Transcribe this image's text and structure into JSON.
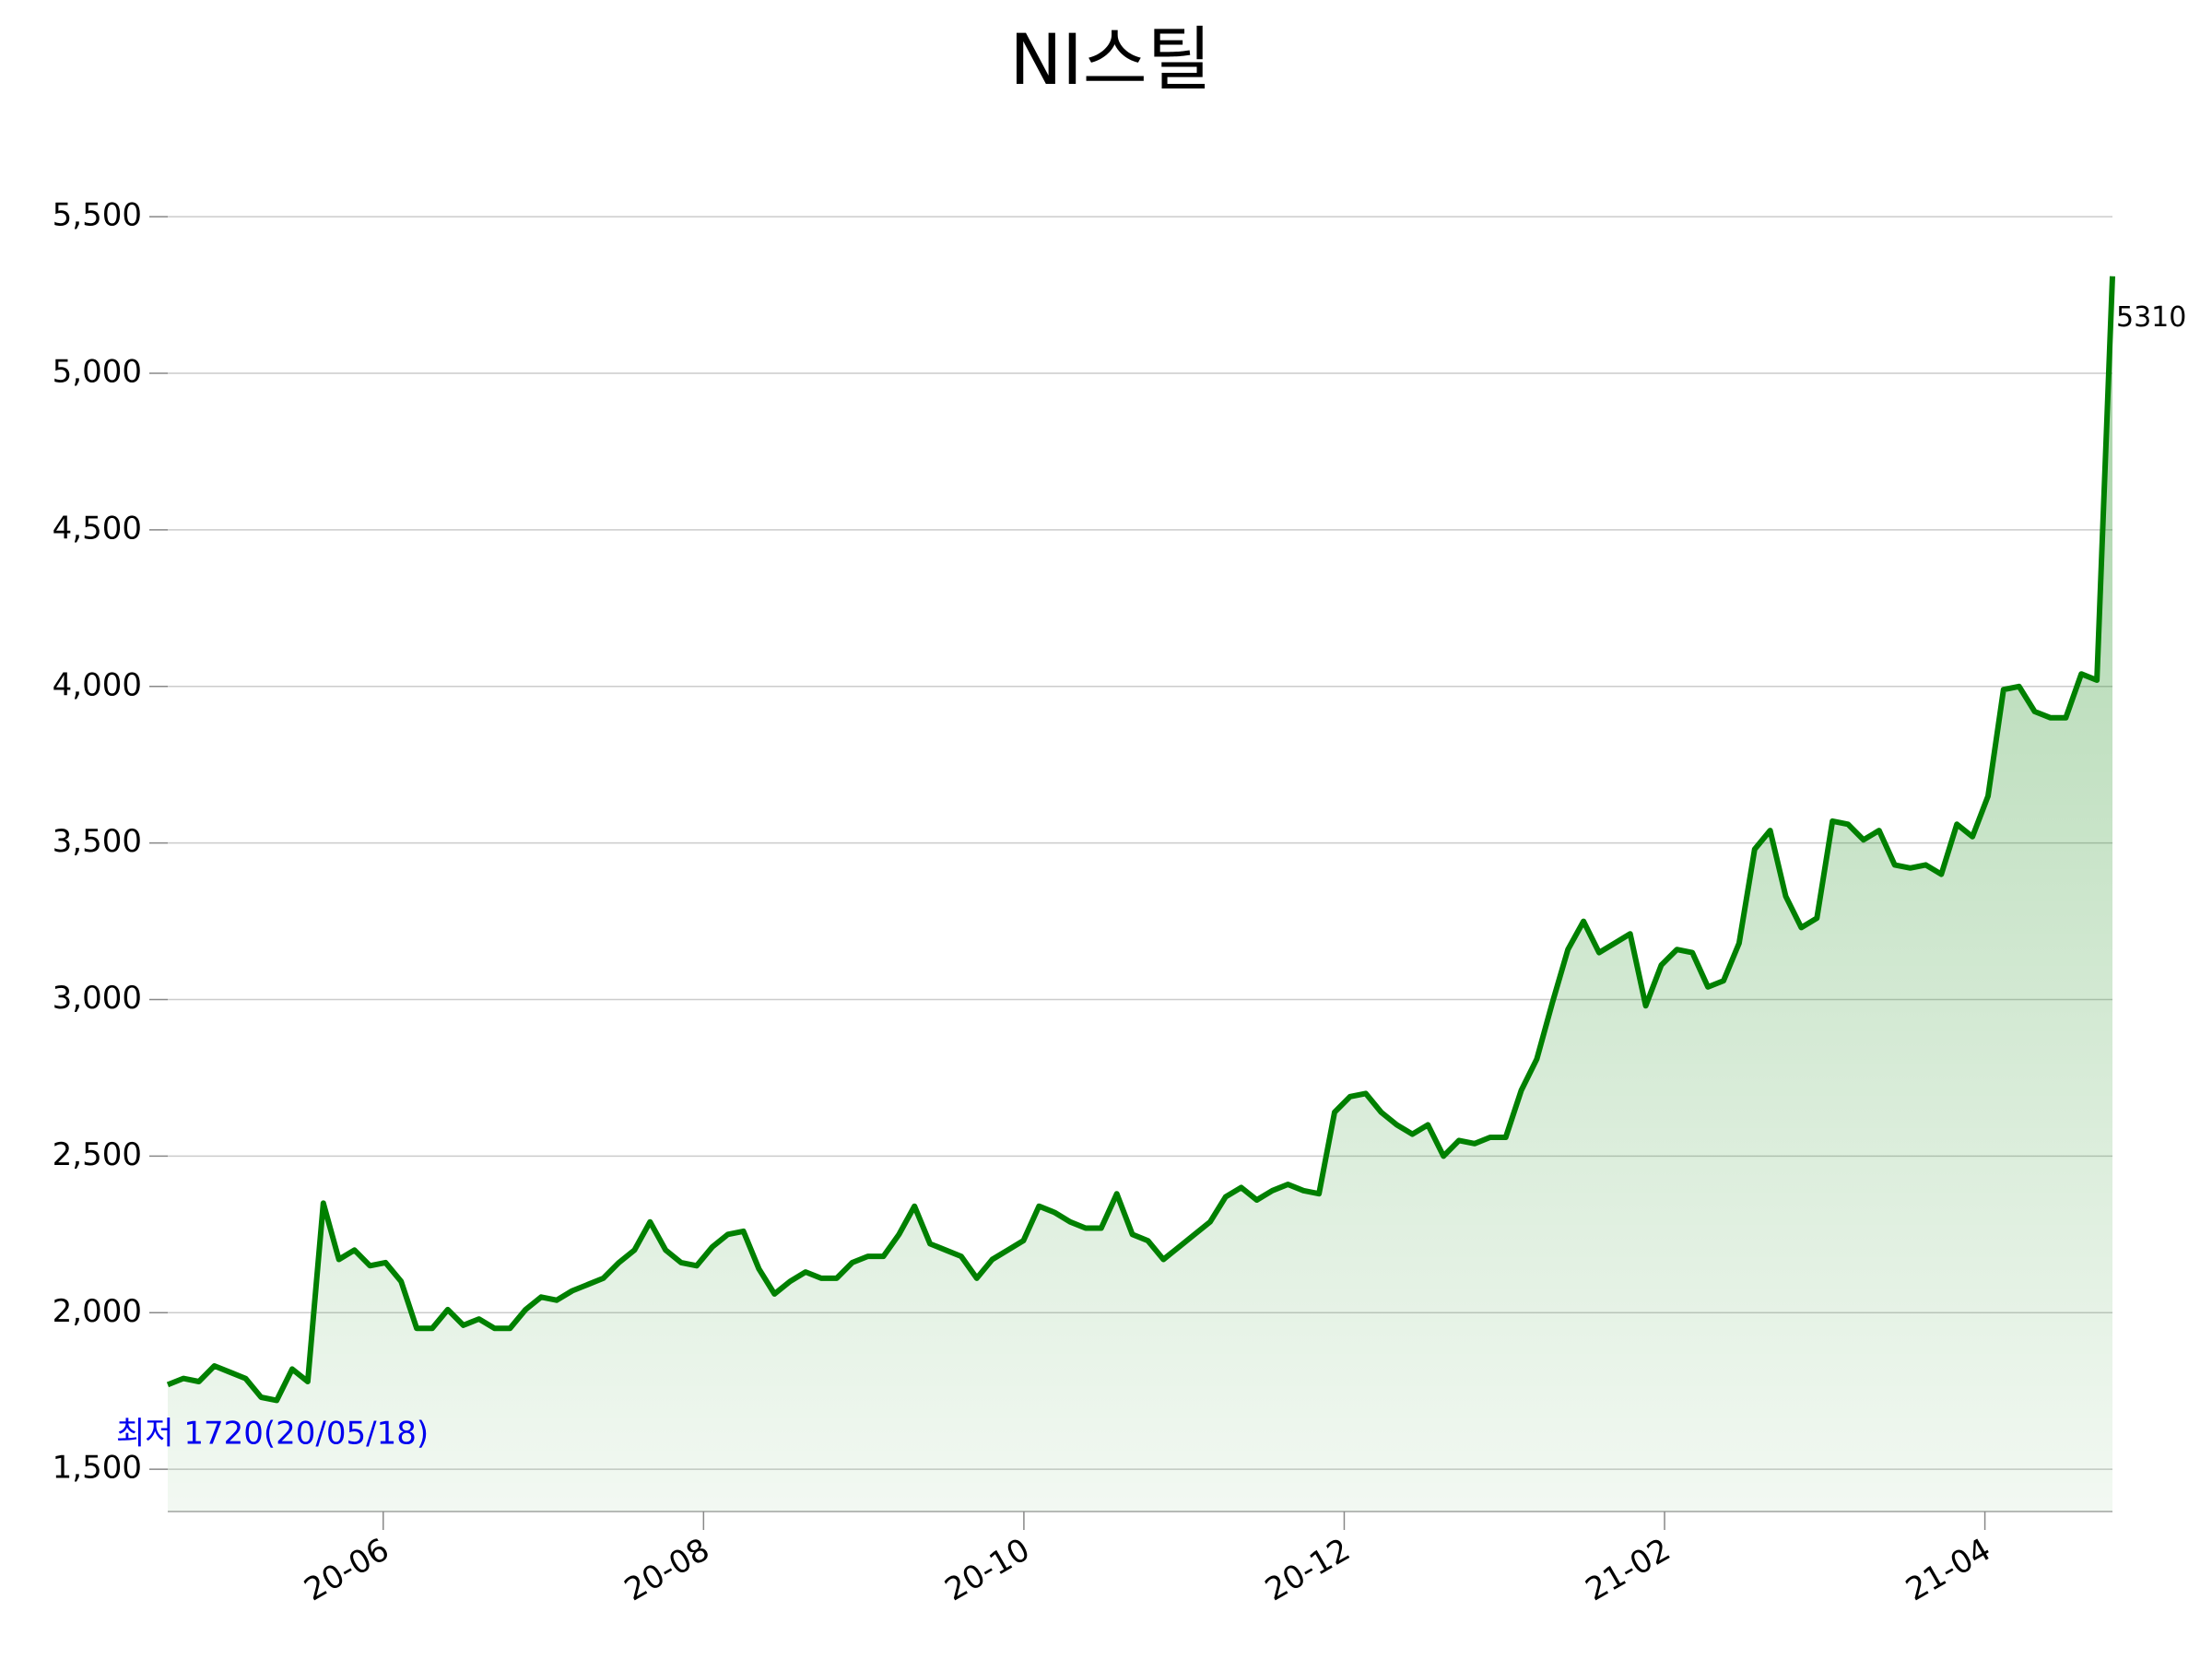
{
  "chart_data": {
    "type": "line",
    "title": "NI스틸",
    "series": [
      {
        "name": "NI스틸",
        "color": "#008000",
        "values": [
          1770,
          1790,
          1780,
          1830,
          1810,
          1790,
          1730,
          1720,
          1820,
          1780,
          2350,
          2170,
          2200,
          2150,
          2160,
          2100,
          1950,
          1950,
          2010,
          1960,
          1980,
          1950,
          1950,
          2010,
          2050,
          2040,
          2070,
          2090,
          2110,
          2160,
          2200,
          2290,
          2200,
          2160,
          2150,
          2210,
          2250,
          2260,
          2140,
          2060,
          2100,
          2130,
          2110,
          2110,
          2160,
          2180,
          2180,
          2250,
          2340,
          2220,
          2200,
          2180,
          2110,
          2170,
          2200,
          2230,
          2340,
          2320,
          2290,
          2270,
          2270,
          2380,
          2250,
          2230,
          2170,
          2210,
          2250,
          2290,
          2370,
          2400,
          2360,
          2390,
          2410,
          2390,
          2380,
          2640,
          2690,
          2700,
          2640,
          2600,
          2570,
          2600,
          2500,
          2550,
          2540,
          2560,
          2560,
          2710,
          2810,
          2990,
          3160,
          3250,
          3150,
          3180,
          3210,
          2980,
          3110,
          3160,
          3150,
          3040,
          3060,
          3180,
          3480,
          3540,
          3330,
          3230,
          3260,
          3570,
          3560,
          3510,
          3540,
          3430,
          3420,
          3430,
          3400,
          3560,
          3520,
          3650,
          3990,
          4000,
          3920,
          3900,
          3900,
          4040,
          4020,
          5310
        ]
      }
    ],
    "xlim": [
      0,
      125
    ],
    "xticks": [
      {
        "value": 13.85,
        "label": "20-06"
      },
      {
        "value": 34.44,
        "label": "20-08"
      },
      {
        "value": 55.03,
        "label": "20-10"
      },
      {
        "value": 75.62,
        "label": "20-12"
      },
      {
        "value": 96.21,
        "label": "21-02"
      },
      {
        "value": 116.8,
        "label": "21-04"
      }
    ],
    "ylim": [
      1365,
      5680
    ],
    "yticks": [
      {
        "value": 1500,
        "label": "1,500"
      },
      {
        "value": 2000,
        "label": "2,000"
      },
      {
        "value": 2500,
        "label": "2,500"
      },
      {
        "value": 3000,
        "label": "3,000"
      },
      {
        "value": 3500,
        "label": "3,500"
      },
      {
        "value": 4000,
        "label": "4,000"
      },
      {
        "value": 4500,
        "label": "4,500"
      },
      {
        "value": 5000,
        "label": "5,000"
      },
      {
        "value": 5500,
        "label": "5,500"
      }
    ],
    "annotations": [
      "최저 1720(20/05/18)"
    ],
    "annotation_color": "#0000ee",
    "grid": true
  }
}
